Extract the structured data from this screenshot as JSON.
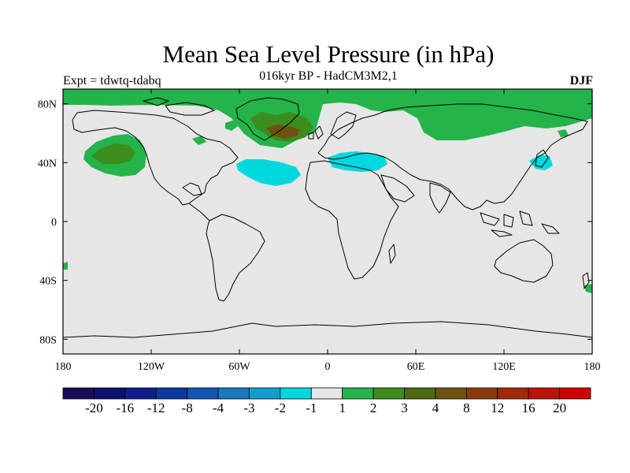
{
  "title": "Mean Sea Level Pressure (in hPa)",
  "subtitle": "016kyr BP - HadCM3M2,1",
  "experiment": "Expt = tdwtq-tdabq",
  "season": "DJF",
  "map": {
    "lon_range": [
      -180,
      180
    ],
    "lat_range": [
      -90,
      90
    ],
    "background_color": "#e6e6e6",
    "lat_ticks": [
      {
        "lat": 80,
        "label": "80N"
      },
      {
        "lat": 40,
        "label": "40N"
      },
      {
        "lat": 0,
        "label": "0"
      },
      {
        "lat": -40,
        "label": "40S"
      },
      {
        "lat": -80,
        "label": "80S"
      }
    ],
    "lon_ticks": [
      {
        "lon": -180,
        "label": "180"
      },
      {
        "lon": -120,
        "label": "120W"
      },
      {
        "lon": -60,
        "label": "60W"
      },
      {
        "lon": 0,
        "label": "0"
      },
      {
        "lon": 60,
        "label": "60E"
      },
      {
        "lon": 120,
        "label": "120E"
      },
      {
        "lon": 180,
        "label": "180"
      }
    ]
  },
  "colorbar": {
    "colors": [
      "#1a0a5a",
      "#0c1170",
      "#101e8a",
      "#0a3aa0",
      "#1058b0",
      "#1878c0",
      "#10a0d0",
      "#00d8e0",
      "#e6e6e6",
      "#24b44a",
      "#3d8c1e",
      "#4e6a10",
      "#6e5210",
      "#8a3a0a",
      "#a2280a",
      "#bc1508",
      "#d00000"
    ],
    "labels": [
      "-20",
      "-16",
      "-12",
      "-8",
      "-4",
      "-3",
      "-2",
      "-1",
      "1",
      "2",
      "3",
      "4",
      "8",
      "12",
      "16",
      "20"
    ]
  }
}
